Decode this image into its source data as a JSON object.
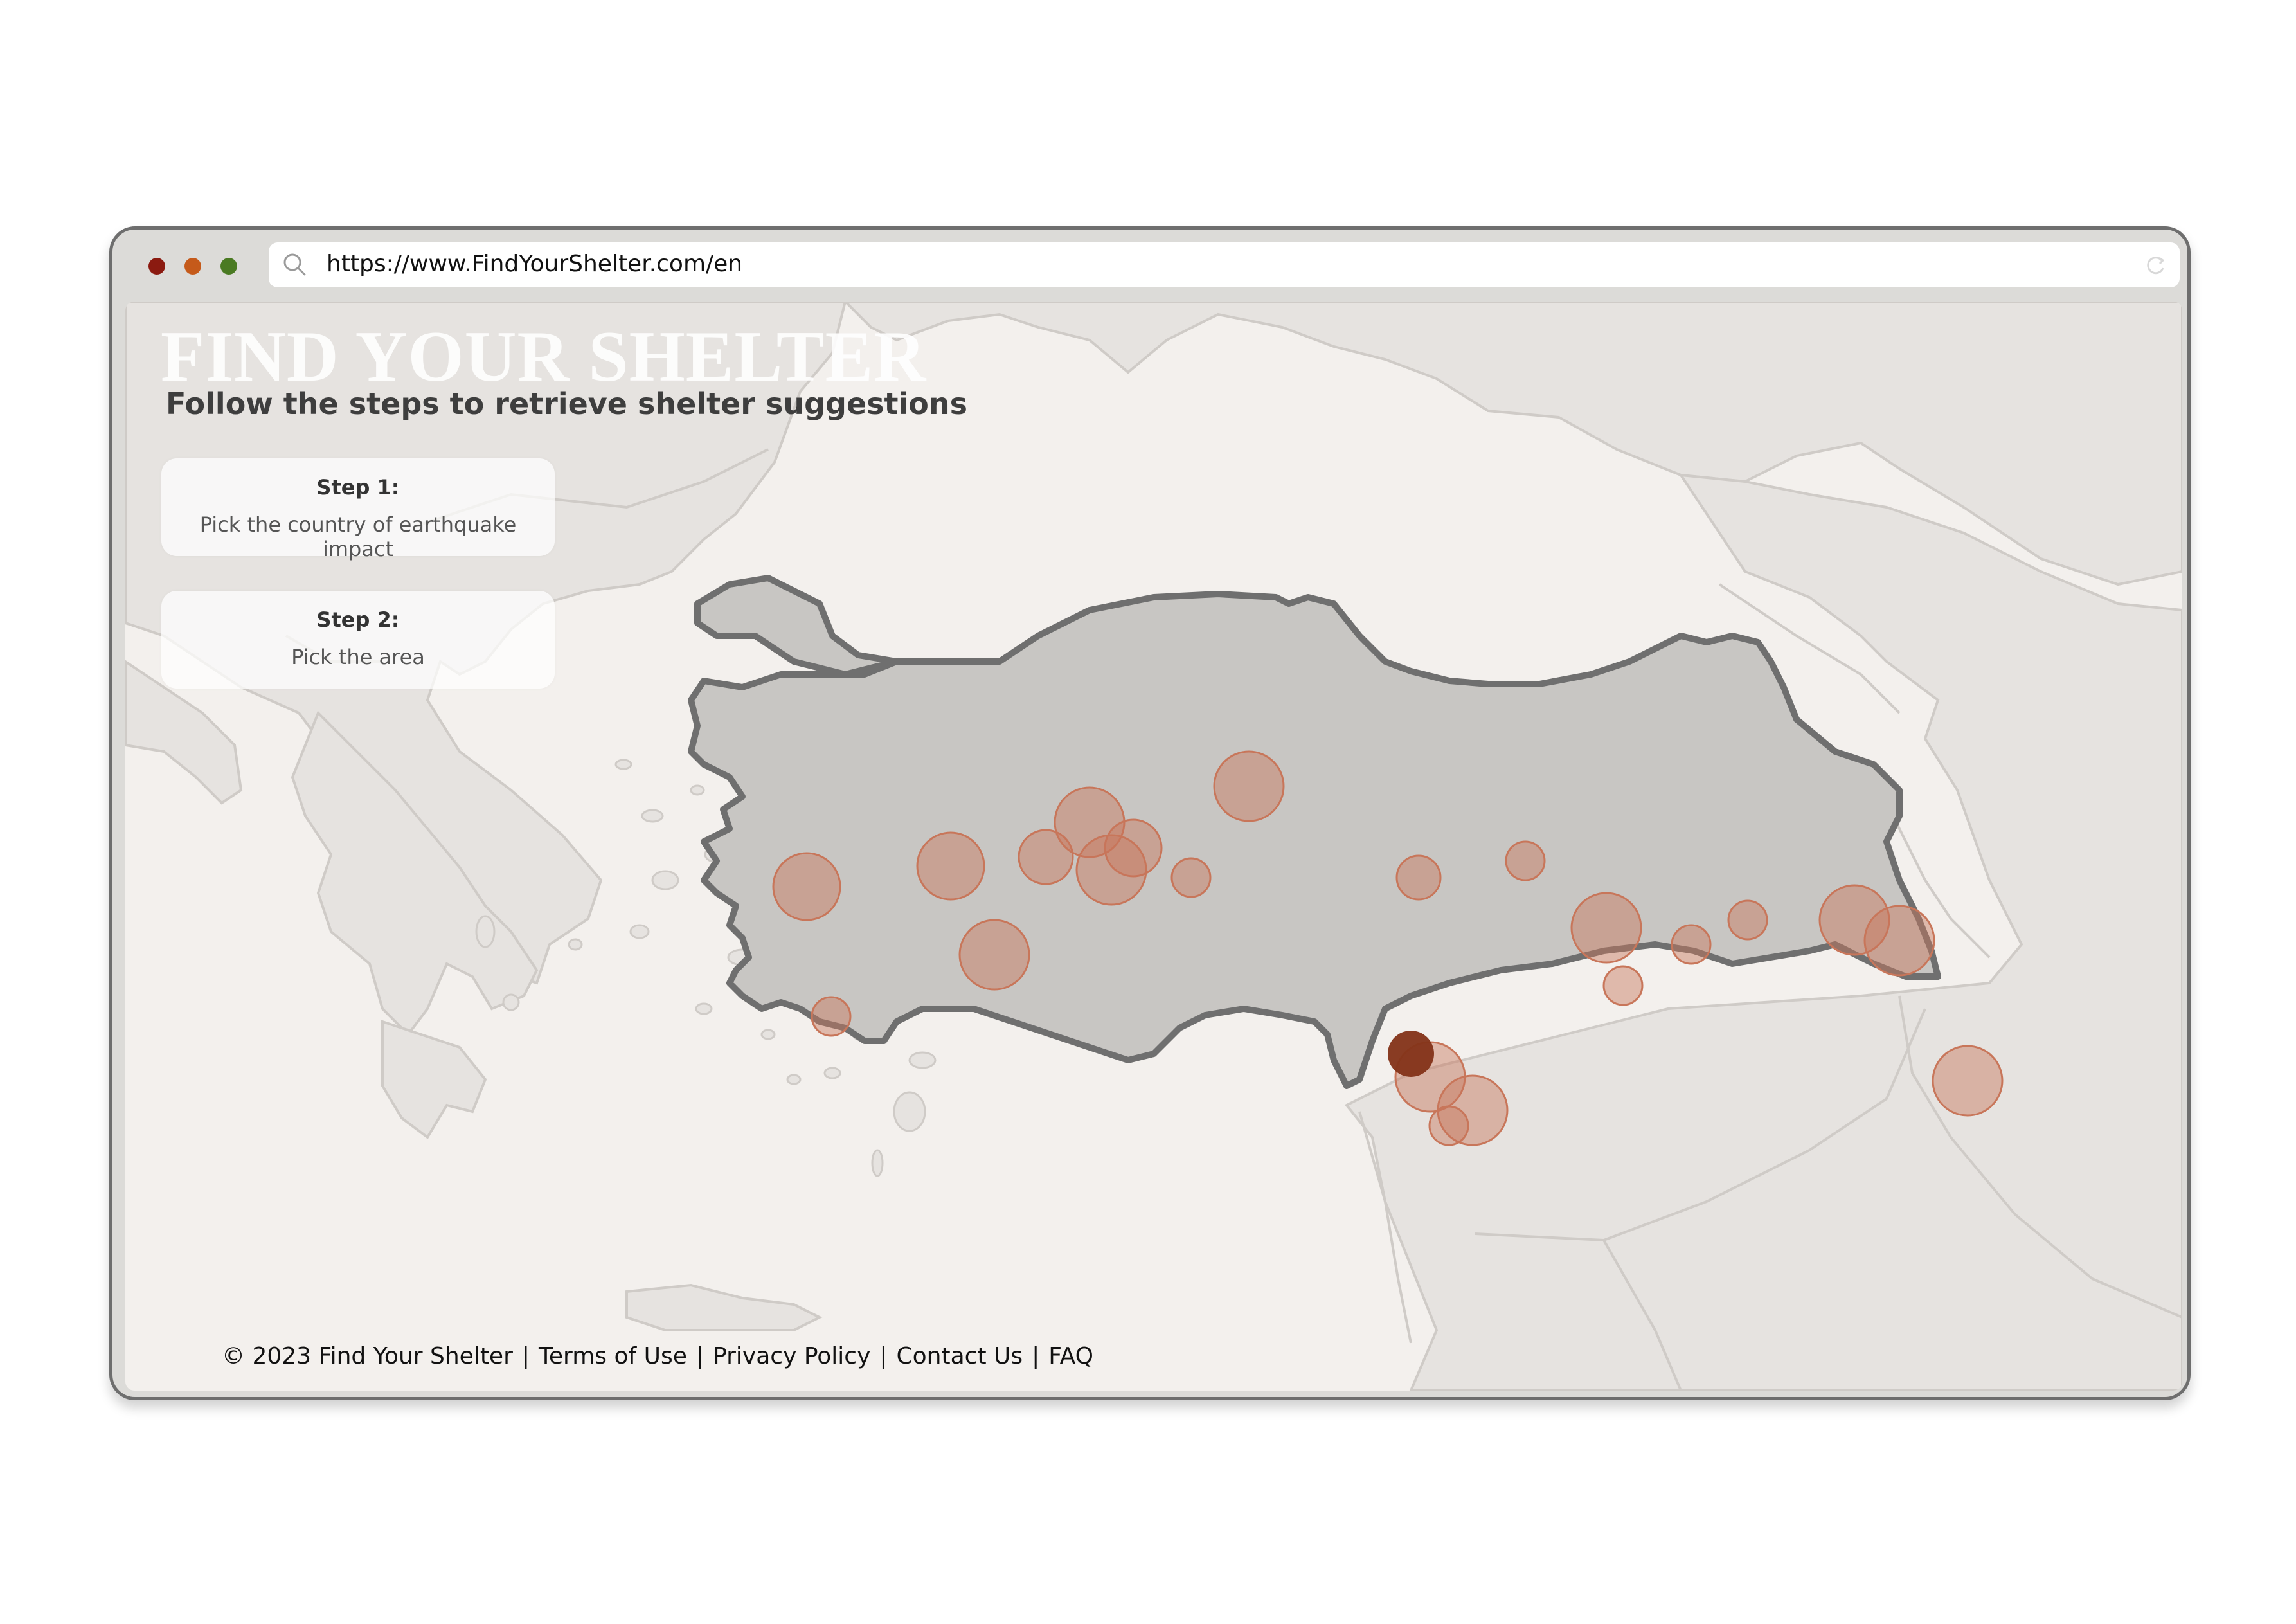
{
  "window": {
    "url": "https://www.FindYourShelter.com/en",
    "traffic_lights": {
      "close": "#8b1a10",
      "minimize": "#c55a1a",
      "maximize": "#4a7a22"
    }
  },
  "page": {
    "title": "FIND YOUR SHELTER",
    "subtitle": "Follow the steps to retrieve shelter suggestions",
    "steps": [
      {
        "title": "Step 1:",
        "description": "Pick the country of earthquake impact"
      },
      {
        "title": "Step 2:",
        "description": "Pick the area"
      }
    ]
  },
  "map": {
    "highlighted_country": "Turkey",
    "land_color": "#e6e3e0",
    "sea_color": "#f3f0ed",
    "country_fill": "#c8c6c3",
    "country_border": "#6f6f6f",
    "marker_color": "#c8765a",
    "selected_marker_color": "#84341a",
    "icons": {
      "search": "search-icon",
      "reload": "reload-icon"
    }
  },
  "footer": {
    "copyright": "© 2023 Find Your Shelter",
    "links": [
      "Terms of Use",
      "Privacy Policy",
      "Contact Us",
      "FAQ"
    ],
    "separator": "|"
  }
}
